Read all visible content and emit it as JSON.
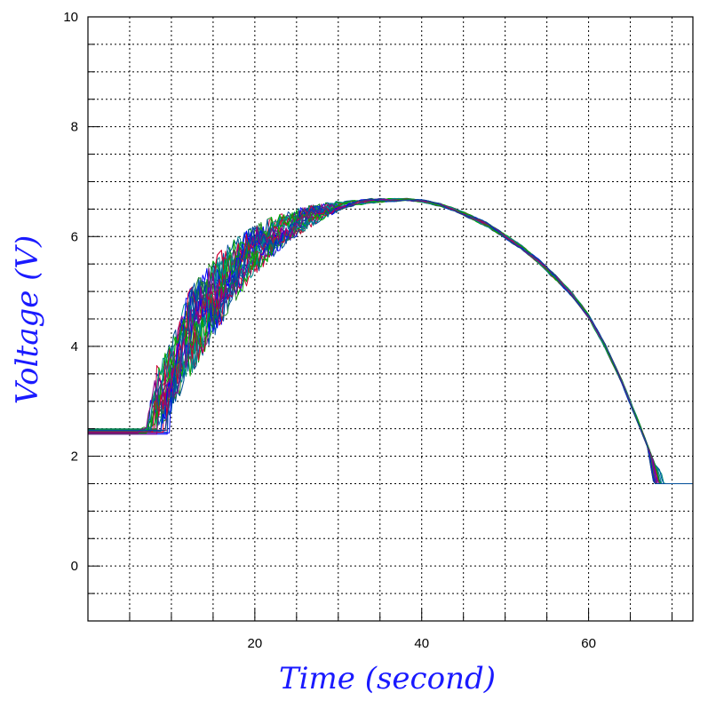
{
  "chart_data": {
    "type": "line",
    "title": "",
    "xlabel": "Time (second)",
    "ylabel": "Voltage (V)",
    "xlim": [
      0,
      72.5
    ],
    "ylim": [
      -1,
      10
    ],
    "x_ticks": [
      20,
      40,
      60
    ],
    "y_ticks": [
      0,
      2,
      4,
      6,
      8,
      10
    ],
    "x_grid_step": 5,
    "y_grid_step": 0.5,
    "grid": true,
    "grid_style": "dotted",
    "legend": "none",
    "series_colors": [
      "#0000ff",
      "#008b8b",
      "#00aa00",
      "#cc0033",
      "#8b008b",
      "#004d99",
      "#228b22",
      "#0055aa"
    ],
    "series_envelope": {
      "x": [
        0,
        5,
        6,
        7,
        8,
        9,
        10,
        11,
        12,
        14,
        16,
        18,
        20,
        22,
        24,
        26,
        28,
        30,
        32,
        34,
        36,
        38,
        40,
        42,
        44,
        46,
        48,
        50,
        52,
        54,
        56,
        58,
        60,
        62,
        64,
        66,
        68,
        70,
        72.5
      ],
      "lower": [
        2.4,
        2.4,
        2.4,
        2.45,
        2.5,
        2.6,
        2.8,
        3.1,
        3.4,
        3.9,
        4.4,
        4.9,
        5.3,
        5.6,
        5.9,
        6.1,
        6.3,
        6.45,
        6.55,
        6.6,
        6.62,
        6.65,
        6.62,
        6.55,
        6.45,
        6.3,
        6.15,
        5.95,
        5.75,
        5.5,
        5.2,
        4.9,
        4.5,
        3.95,
        3.3,
        2.55,
        1.8,
        1.5,
        1.5
      ],
      "upper": [
        2.5,
        2.5,
        2.5,
        2.55,
        3.6,
        3.8,
        4.1,
        4.5,
        5.0,
        5.4,
        5.75,
        6.0,
        6.2,
        6.35,
        6.45,
        6.55,
        6.6,
        6.65,
        6.68,
        6.7,
        6.7,
        6.7,
        6.68,
        6.62,
        6.52,
        6.4,
        6.25,
        6.05,
        5.85,
        5.6,
        5.32,
        5.0,
        4.6,
        4.05,
        3.4,
        2.65,
        1.85,
        1.5,
        1.5
      ]
    },
    "num_series": 30
  }
}
